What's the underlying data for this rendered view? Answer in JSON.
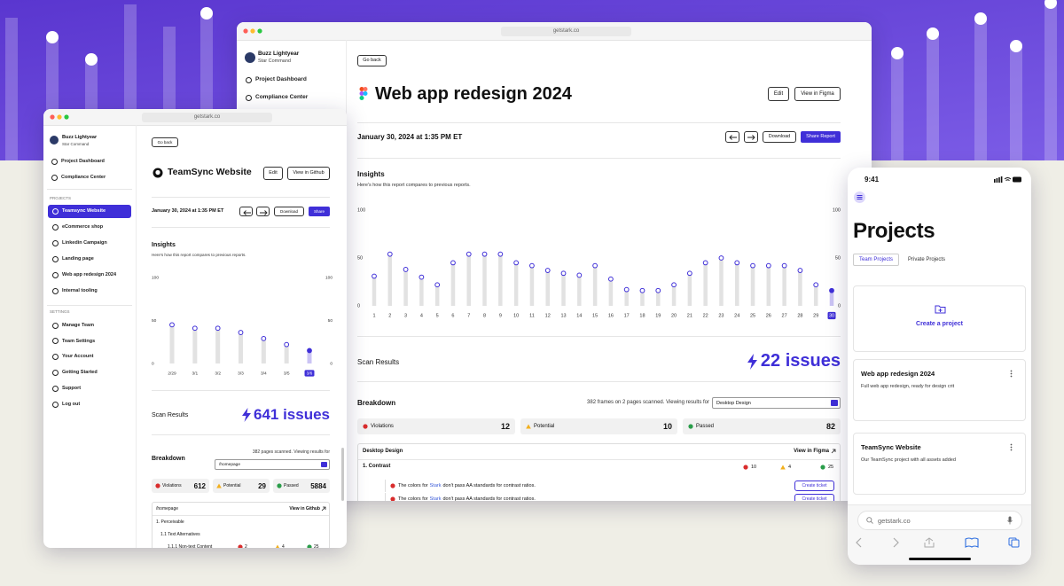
{
  "main_window": {
    "url": "getstark.co",
    "user": {
      "name": "Buzz Lightyear",
      "org": "Star Command"
    },
    "nav": [
      "Project Dashboard",
      "Compliance Center"
    ],
    "back": "Go back",
    "title": "Web app redesign 2024",
    "actions": [
      "Edit",
      "View in Figma"
    ],
    "date": "January 30, 2024 at 1:35 PM ET",
    "report_actions": [
      "Download",
      "Share Report"
    ],
    "insights": {
      "title": "Insights",
      "subtitle": "Here's how this report compares to previous reports."
    },
    "scan": {
      "label": "Scan Results",
      "issues": "22 issues"
    },
    "breakdown": {
      "title": "Breakdown",
      "summary": "382 frames on 2 pages scanned. Viewing results for",
      "selected": "Desktop Design",
      "stats": [
        {
          "label": "Violations",
          "value": 12
        },
        {
          "label": "Potential",
          "value": 10
        },
        {
          "label": "Passed",
          "value": 82
        }
      ],
      "section": "Desktop Design",
      "link": "View in Figma",
      "group": {
        "name": "1. Contrast",
        "counts": [
          10,
          4,
          25
        ]
      },
      "issues": [
        {
          "prefix": "The colors for",
          "link": "Stark",
          "suffix": "don't pass AA standards for contrast ratios.",
          "action": "Create ticket"
        },
        {
          "prefix": "The colors for",
          "link": "Stark",
          "suffix": "don't pass AA standards for contrast ratios.",
          "action": "Create ticket"
        }
      ]
    }
  },
  "small_window": {
    "url": "getstark.co",
    "user": {
      "name": "Buzz Lightyear",
      "org": "Star Command"
    },
    "nav": [
      "Project Dashboard",
      "Compliance Center"
    ],
    "projects_heading": "PROJECTS",
    "projects": [
      "Teamsync Website",
      "eCommerce shop",
      "Linkedin Campaign",
      "Landing page",
      "Web app redesign 2024",
      "Internal tooling"
    ],
    "settings_heading": "SETTINGS",
    "settings": [
      "Manage Team",
      "Team Settings",
      "Your Account",
      "Getting Started",
      "Support",
      "Log out"
    ],
    "back": "Go back",
    "title": "TeamSync Website",
    "actions": [
      "Edit",
      "View in Github"
    ],
    "date": "January 30, 2024 at 1:35 PM ET",
    "report_actions": [
      "Download",
      "Share"
    ],
    "insights": {
      "title": "Insights",
      "subtitle": "Here's how this report compares to previous reports."
    },
    "scan": {
      "label": "Scan Results",
      "issues": "641 issues"
    },
    "breakdown": {
      "title": "Breakdown",
      "summary": "382 pages scanned. Viewing results for",
      "selected": "/homepage",
      "stats": [
        {
          "label": "Violations",
          "value": 612
        },
        {
          "label": "Potential",
          "value": 29
        },
        {
          "label": "Passed",
          "value": 5884
        }
      ],
      "section": "/homepage",
      "link": "View in Github",
      "group": "1. Perceivable",
      "subgroup": "1.1 Text Alternatives",
      "item": {
        "name": "1.1.1 Non-text Content",
        "counts": [
          2,
          4,
          25
        ]
      }
    }
  },
  "phone": {
    "time": "9:41",
    "title": "Projects",
    "tabs": [
      "Team Projects",
      "Private Projects"
    ],
    "create": "Create a project",
    "cards": [
      {
        "title": "Web app redesign 2024",
        "description": "Full web app redesign, ready for design crit"
      },
      {
        "title": "TeamSync Website",
        "description": "Our TeamSync project with all assets added"
      }
    ],
    "url": "getstark.co"
  },
  "chart_data": [
    {
      "type": "bar",
      "color": "#3f2fd8",
      "categories": [
        "1",
        "2",
        "3",
        "4",
        "5",
        "6",
        "7",
        "8",
        "9",
        "10",
        "11",
        "12",
        "13",
        "14",
        "15",
        "16",
        "17",
        "18",
        "19",
        "20",
        "21",
        "22",
        "23",
        "24",
        "25",
        "26",
        "27",
        "28",
        "29",
        "30"
      ],
      "values": [
        31,
        54,
        38,
        30,
        22,
        45,
        54,
        54,
        54,
        45,
        42,
        37,
        34,
        32,
        42,
        28,
        17,
        16,
        16,
        22,
        34,
        45,
        50,
        45,
        42,
        42,
        42,
        37,
        22,
        16
      ],
      "ylim": [
        0,
        100
      ],
      "yticks": [
        0,
        50,
        100
      ]
    },
    {
      "type": "bar",
      "color": "#3f2fd8",
      "categories": [
        "2/29",
        "3/1",
        "3/2",
        "3/3",
        "3/4",
        "3/5",
        "3/6"
      ],
      "values": [
        45,
        41,
        41,
        36,
        29,
        22,
        15
      ],
      "ylim": [
        0,
        100
      ],
      "yticks": [
        0,
        50,
        100
      ]
    }
  ]
}
